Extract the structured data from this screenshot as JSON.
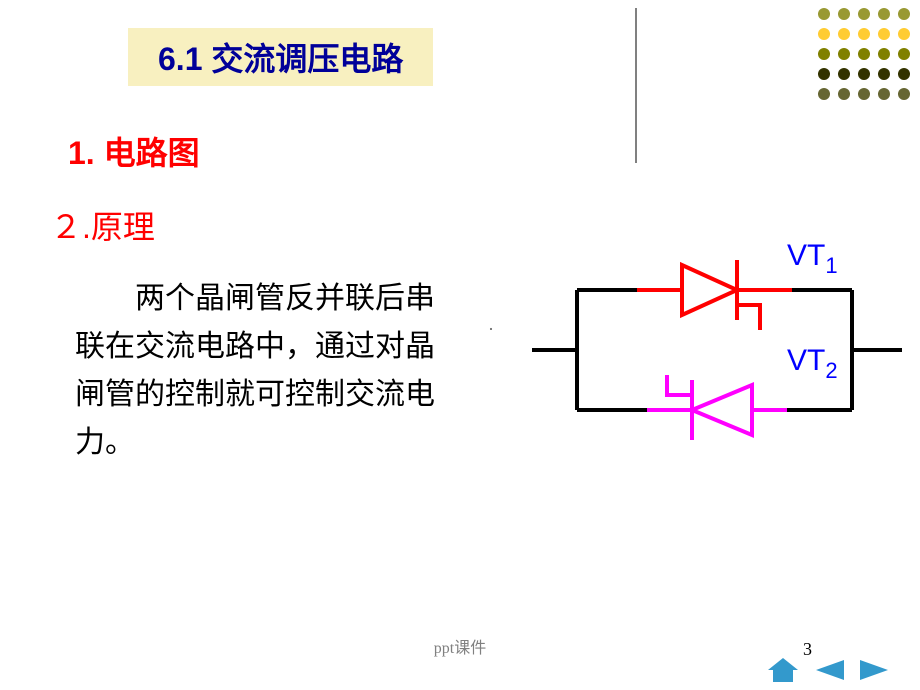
{
  "decoration": {
    "rows": [
      [
        "#999933",
        "#999933",
        "#999933",
        "#999933",
        "#999933"
      ],
      [
        "#ffcc33",
        "#ffcc33",
        "#ffcc33",
        "#ffcc33",
        "#ffcc33"
      ],
      [
        "#808000",
        "#808000",
        "#808000",
        "#808000",
        "#808000"
      ],
      [
        "#333300",
        "#333300",
        "#333300",
        "#333300",
        "#333300"
      ],
      [
        "#666633",
        "#666633",
        "#666633",
        "#666633",
        "#666633"
      ]
    ]
  },
  "title": "6.1  交流调压电路",
  "section1": "1. 电路图",
  "section2": "２.原理",
  "body": "两个晶闸管反并联后串联在交流电路中，通过对晶闸管的控制就可控制交流电力。",
  "circuit": {
    "label_vt1": "VT",
    "label_vt1_sub": "1",
    "label_vt2": "VT",
    "label_vt2_sub": "2",
    "vt1_color": "#ff0000",
    "vt2_color": "#ff00ff",
    "wire_color": "#000000",
    "label_color": "#0000ff",
    "stroke_width": 4
  },
  "footer": "ppt课件",
  "page_number": "3",
  "nav": {
    "home_color": "#3399cc",
    "arrow_color": "#3399cc"
  }
}
